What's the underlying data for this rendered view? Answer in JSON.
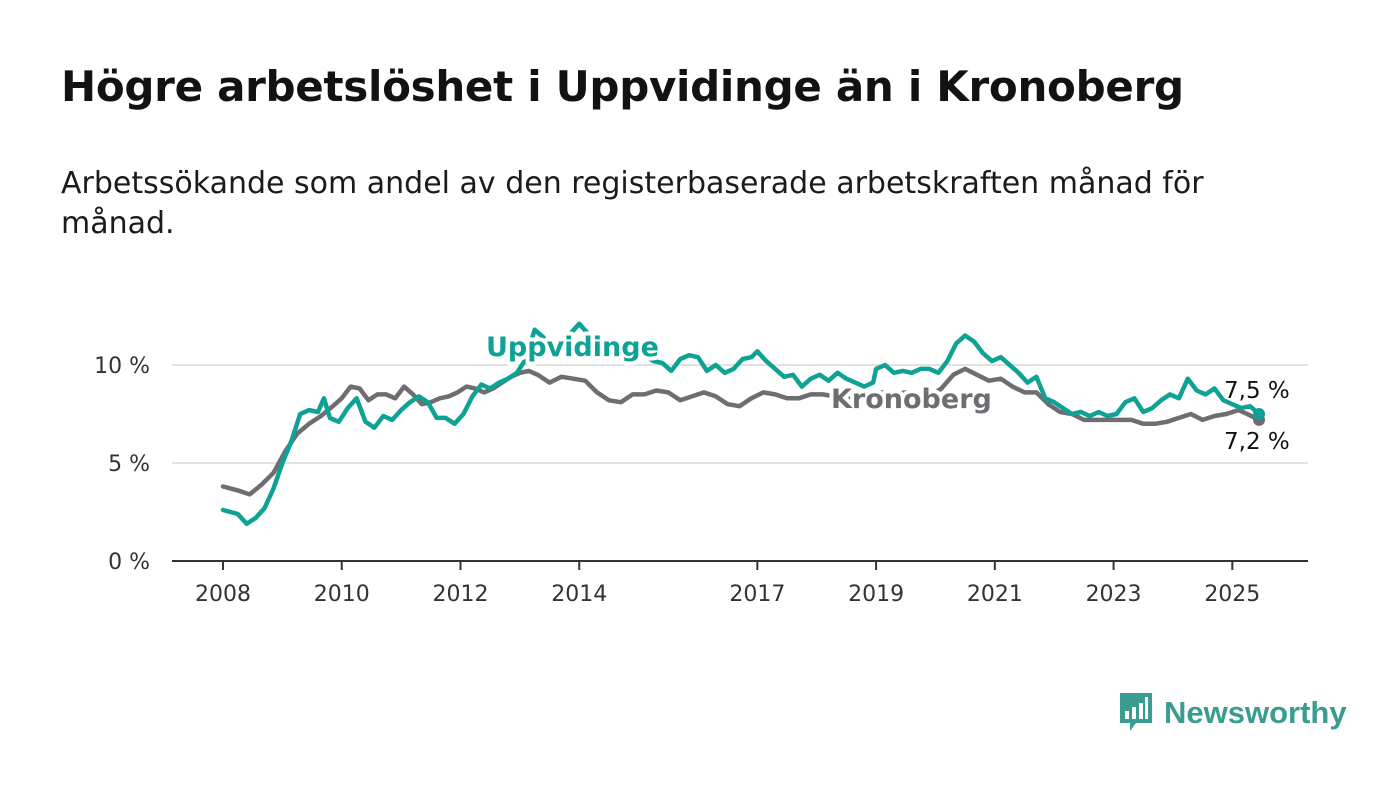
{
  "header": {
    "title": "Högre arbetslöshet i Uppvidinge än i Kronoberg",
    "subtitle": "Arbetssökande som andel av den registerbaserade arbetskraften månad för månad."
  },
  "brand": {
    "name": "Newsworthy",
    "icon": "bar-chart-speech-bubble-icon",
    "color": "#3a9c91"
  },
  "chart_data": {
    "type": "line",
    "title": "",
    "xlabel": "",
    "ylabel": "",
    "x_range": [
      2008.0,
      2025.5
    ],
    "ylim": [
      0,
      10
    ],
    "y_ticks": [
      {
        "value": 0,
        "label": "0 %"
      },
      {
        "value": 5,
        "label": "5 %"
      },
      {
        "value": 10,
        "label": "10 %"
      }
    ],
    "x_ticks": [
      {
        "value": 2008,
        "label": "2008"
      },
      {
        "value": 2010,
        "label": "2010"
      },
      {
        "value": 2012,
        "label": "2012"
      },
      {
        "value": 2014,
        "label": "2014"
      },
      {
        "value": 2017,
        "label": "2017"
      },
      {
        "value": 2019,
        "label": "2019"
      },
      {
        "value": 2021,
        "label": "2021"
      },
      {
        "value": 2023,
        "label": "2023"
      },
      {
        "value": 2025,
        "label": "2025"
      }
    ],
    "grid": "horizontal",
    "legend": "direct labels on lines",
    "series": [
      {
        "name": "Uppvidinge",
        "color": "#0ea195",
        "end_label": "7,5 %",
        "points": [
          [
            2008.0,
            2.6
          ],
          [
            2008.25,
            2.4
          ],
          [
            2008.4,
            1.9
          ],
          [
            2008.55,
            2.2
          ],
          [
            2008.7,
            2.7
          ],
          [
            2008.85,
            3.7
          ],
          [
            2009.0,
            5.0
          ],
          [
            2009.15,
            6.1
          ],
          [
            2009.3,
            7.5
          ],
          [
            2009.45,
            7.7
          ],
          [
            2009.6,
            7.6
          ],
          [
            2009.7,
            8.3
          ],
          [
            2009.8,
            7.3
          ],
          [
            2009.95,
            7.1
          ],
          [
            2010.1,
            7.8
          ],
          [
            2010.25,
            8.3
          ],
          [
            2010.4,
            7.1
          ],
          [
            2010.55,
            6.8
          ],
          [
            2010.7,
            7.4
          ],
          [
            2010.85,
            7.2
          ],
          [
            2011.0,
            7.7
          ],
          [
            2011.15,
            8.1
          ],
          [
            2011.3,
            8.4
          ],
          [
            2011.45,
            8.1
          ],
          [
            2011.6,
            7.3
          ],
          [
            2011.75,
            7.3
          ],
          [
            2011.9,
            7.0
          ],
          [
            2012.05,
            7.5
          ],
          [
            2012.2,
            8.4
          ],
          [
            2012.35,
            9.0
          ],
          [
            2012.5,
            8.8
          ],
          [
            2012.65,
            9.1
          ],
          [
            2012.8,
            9.3
          ],
          [
            2012.95,
            9.6
          ],
          [
            2013.1,
            10.3
          ],
          [
            2013.25,
            11.8
          ],
          [
            2013.4,
            11.4
          ],
          [
            2013.55,
            10.9
          ],
          [
            2013.7,
            11.2
          ],
          [
            2013.85,
            11.6
          ],
          [
            2014.0,
            12.1
          ],
          [
            2014.15,
            11.6
          ],
          [
            2014.3,
            11.2
          ],
          [
            2014.5,
            11.0
          ],
          [
            2014.7,
            10.7
          ],
          [
            2014.9,
            10.6
          ],
          [
            2015.1,
            10.5
          ],
          [
            2015.25,
            10.2
          ],
          [
            2015.4,
            10.1
          ],
          [
            2015.55,
            9.7
          ],
          [
            2015.7,
            10.3
          ],
          [
            2015.85,
            10.5
          ],
          [
            2016.0,
            10.4
          ],
          [
            2016.15,
            9.7
          ],
          [
            2016.3,
            10.0
          ],
          [
            2016.45,
            9.6
          ],
          [
            2016.6,
            9.8
          ],
          [
            2016.75,
            10.3
          ],
          [
            2016.9,
            10.4
          ],
          [
            2017.0,
            10.7
          ],
          [
            2017.15,
            10.2
          ],
          [
            2017.3,
            9.8
          ],
          [
            2017.45,
            9.4
          ],
          [
            2017.6,
            9.5
          ],
          [
            2017.75,
            8.9
          ],
          [
            2017.9,
            9.3
          ],
          [
            2018.05,
            9.5
          ],
          [
            2018.2,
            9.2
          ],
          [
            2018.35,
            9.6
          ],
          [
            2018.5,
            9.3
          ],
          [
            2018.65,
            9.1
          ],
          [
            2018.8,
            8.9
          ],
          [
            2018.95,
            9.1
          ],
          [
            2019.0,
            9.8
          ],
          [
            2019.15,
            10.0
          ],
          [
            2019.3,
            9.6
          ],
          [
            2019.45,
            9.7
          ],
          [
            2019.6,
            9.6
          ],
          [
            2019.75,
            9.8
          ],
          [
            2019.9,
            9.8
          ],
          [
            2020.05,
            9.6
          ],
          [
            2020.2,
            10.2
          ],
          [
            2020.35,
            11.1
          ],
          [
            2020.5,
            11.5
          ],
          [
            2020.65,
            11.2
          ],
          [
            2020.8,
            10.6
          ],
          [
            2020.95,
            10.2
          ],
          [
            2021.1,
            10.4
          ],
          [
            2021.25,
            10.0
          ],
          [
            2021.4,
            9.6
          ],
          [
            2021.55,
            9.1
          ],
          [
            2021.7,
            9.4
          ],
          [
            2021.85,
            8.3
          ],
          [
            2022.0,
            8.1
          ],
          [
            2022.15,
            7.8
          ],
          [
            2022.3,
            7.5
          ],
          [
            2022.45,
            7.6
          ],
          [
            2022.6,
            7.4
          ],
          [
            2022.75,
            7.6
          ],
          [
            2022.9,
            7.4
          ],
          [
            2023.05,
            7.5
          ],
          [
            2023.2,
            8.1
          ],
          [
            2023.35,
            8.3
          ],
          [
            2023.5,
            7.6
          ],
          [
            2023.65,
            7.8
          ],
          [
            2023.8,
            8.2
          ],
          [
            2023.95,
            8.5
          ],
          [
            2024.1,
            8.3
          ],
          [
            2024.25,
            9.3
          ],
          [
            2024.4,
            8.7
          ],
          [
            2024.55,
            8.5
          ],
          [
            2024.7,
            8.8
          ],
          [
            2024.85,
            8.2
          ],
          [
            2025.0,
            8.0
          ],
          [
            2025.15,
            7.8
          ],
          [
            2025.3,
            7.9
          ],
          [
            2025.45,
            7.5
          ]
        ]
      },
      {
        "name": "Kronoberg",
        "color": "#6e6d71",
        "end_label": "7,2 %",
        "points": [
          [
            2008.0,
            3.8
          ],
          [
            2008.25,
            3.6
          ],
          [
            2008.45,
            3.4
          ],
          [
            2008.65,
            3.9
          ],
          [
            2008.85,
            4.5
          ],
          [
            2009.05,
            5.6
          ],
          [
            2009.25,
            6.5
          ],
          [
            2009.45,
            7.0
          ],
          [
            2009.65,
            7.4
          ],
          [
            2009.85,
            7.9
          ],
          [
            2010.0,
            8.3
          ],
          [
            2010.15,
            8.9
          ],
          [
            2010.3,
            8.8
          ],
          [
            2010.45,
            8.2
          ],
          [
            2010.6,
            8.5
          ],
          [
            2010.75,
            8.5
          ],
          [
            2010.9,
            8.3
          ],
          [
            2011.05,
            8.9
          ],
          [
            2011.2,
            8.5
          ],
          [
            2011.35,
            8.0
          ],
          [
            2011.5,
            8.1
          ],
          [
            2011.65,
            8.3
          ],
          [
            2011.8,
            8.4
          ],
          [
            2011.95,
            8.6
          ],
          [
            2012.1,
            8.9
          ],
          [
            2012.25,
            8.8
          ],
          [
            2012.4,
            8.6
          ],
          [
            2012.55,
            8.8
          ],
          [
            2012.7,
            9.1
          ],
          [
            2012.85,
            9.4
          ],
          [
            2013.0,
            9.6
          ],
          [
            2013.15,
            9.7
          ],
          [
            2013.3,
            9.5
          ],
          [
            2013.5,
            9.1
          ],
          [
            2013.7,
            9.4
          ],
          [
            2013.9,
            9.3
          ],
          [
            2014.1,
            9.2
          ],
          [
            2014.3,
            8.6
          ],
          [
            2014.5,
            8.2
          ],
          [
            2014.7,
            8.1
          ],
          [
            2014.9,
            8.5
          ],
          [
            2015.1,
            8.5
          ],
          [
            2015.3,
            8.7
          ],
          [
            2015.5,
            8.6
          ],
          [
            2015.7,
            8.2
          ],
          [
            2015.9,
            8.4
          ],
          [
            2016.1,
            8.6
          ],
          [
            2016.3,
            8.4
          ],
          [
            2016.5,
            8.0
          ],
          [
            2016.7,
            7.9
          ],
          [
            2016.9,
            8.3
          ],
          [
            2017.1,
            8.6
          ],
          [
            2017.3,
            8.5
          ],
          [
            2017.5,
            8.3
          ],
          [
            2017.7,
            8.3
          ],
          [
            2017.9,
            8.5
          ],
          [
            2018.1,
            8.5
          ],
          [
            2018.3,
            8.4
          ],
          [
            2018.5,
            8.3
          ],
          [
            2018.7,
            8.5
          ],
          [
            2018.9,
            8.4
          ],
          [
            2019.1,
            8.6
          ],
          [
            2019.3,
            8.5
          ],
          [
            2019.5,
            8.6
          ],
          [
            2019.7,
            8.4
          ],
          [
            2019.9,
            8.4
          ],
          [
            2020.1,
            8.8
          ],
          [
            2020.3,
            9.5
          ],
          [
            2020.5,
            9.8
          ],
          [
            2020.7,
            9.5
          ],
          [
            2020.9,
            9.2
          ],
          [
            2021.1,
            9.3
          ],
          [
            2021.3,
            8.9
          ],
          [
            2021.5,
            8.6
          ],
          [
            2021.7,
            8.6
          ],
          [
            2021.9,
            8.0
          ],
          [
            2022.1,
            7.6
          ],
          [
            2022.3,
            7.5
          ],
          [
            2022.5,
            7.2
          ],
          [
            2022.7,
            7.2
          ],
          [
            2022.9,
            7.2
          ],
          [
            2023.1,
            7.2
          ],
          [
            2023.3,
            7.2
          ],
          [
            2023.5,
            7.0
          ],
          [
            2023.7,
            7.0
          ],
          [
            2023.9,
            7.1
          ],
          [
            2024.1,
            7.3
          ],
          [
            2024.3,
            7.5
          ],
          [
            2024.5,
            7.2
          ],
          [
            2024.7,
            7.4
          ],
          [
            2024.9,
            7.5
          ],
          [
            2025.1,
            7.7
          ],
          [
            2025.25,
            7.5
          ],
          [
            2025.45,
            7.2
          ]
        ]
      }
    ]
  }
}
